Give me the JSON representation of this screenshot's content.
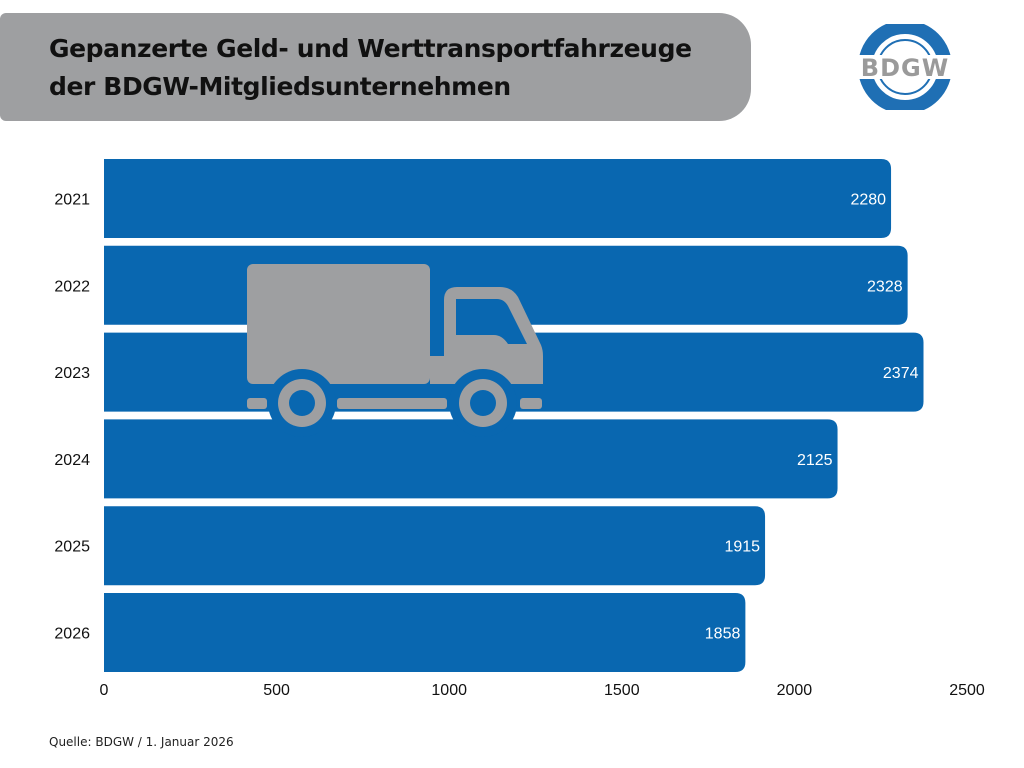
{
  "header": {
    "title_line1": "Gepanzerte Geld- und Werttransportfahrzeuge",
    "title_line2": "der BDGW-Mitgliedsunternehmen"
  },
  "logo": {
    "text": "BDGW",
    "icon": "bdgw-logo-icon",
    "ring_color": "#1f6fb4",
    "text_color": "#9a9a9a"
  },
  "decoration": {
    "icon": "truck-icon",
    "color": "#9e9fa1"
  },
  "colors": {
    "bar": "#0967b0",
    "banner": "#9e9fa1"
  },
  "chart_data": {
    "type": "bar",
    "orientation": "horizontal",
    "title": "Gepanzerte Geld- und Werttransportfahrzeuge der BDGW-Mitgliedsunternehmen",
    "categories": [
      "2021",
      "2022",
      "2023",
      "2024",
      "2025",
      "2026"
    ],
    "values": [
      2280,
      2328,
      2374,
      2125,
      1915,
      1858
    ],
    "value_labels": [
      "2280",
      "2328",
      "2374",
      "2125",
      "1915",
      "1858"
    ],
    "xlabel": "",
    "ylabel": "",
    "xlim": [
      0,
      2500
    ],
    "xticks": [
      0,
      500,
      1000,
      1500,
      2000,
      2500
    ],
    "xtick_labels": [
      "0",
      "500",
      "1000",
      "1500",
      "2000",
      "2500"
    ],
    "grid": false,
    "legend": "none"
  },
  "footer": {
    "source": "Quelle: BDGW / 1. Januar 2026"
  }
}
